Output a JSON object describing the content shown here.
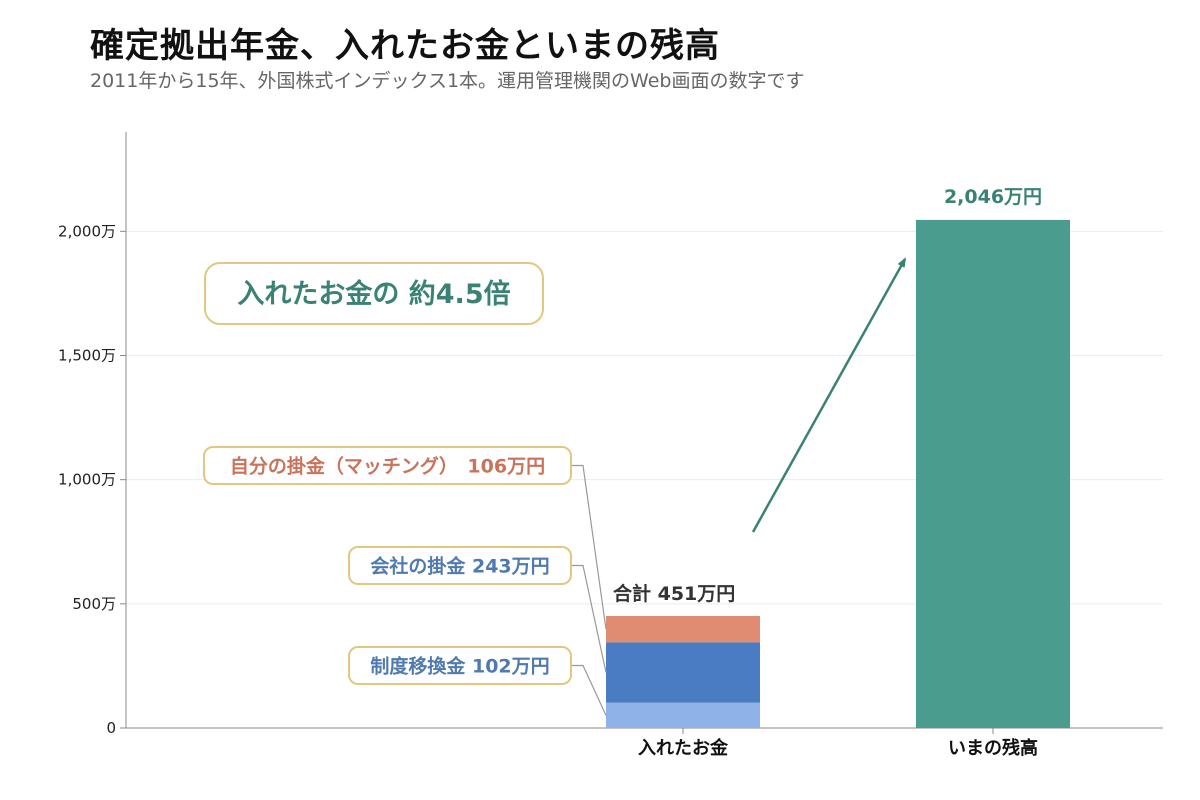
{
  "title": "確定拠出年金、入れたお金といまの残高",
  "subtitle": "2011年から15年、外国株式インデックス1本。運用管理機関のWeb画面の数字です",
  "chart_data": {
    "type": "bar",
    "categories": [
      "入れたお金",
      "いまの残高"
    ],
    "ylim": [
      0,
      2400
    ],
    "yticks": [
      0,
      500,
      1000,
      1500,
      2000
    ],
    "ytick_labels": [
      "0",
      "500万",
      "1,000万",
      "1,500万",
      "2,000万"
    ],
    "grid": true,
    "series": [
      {
        "name": "制度移換金",
        "category": "入れたお金",
        "value": 102,
        "color": "#8db3e8",
        "label": "制度移換金  102万円",
        "label_color": "#4f7ab0"
      },
      {
        "name": "会社の掛金",
        "category": "入れたお金",
        "value": 243,
        "color": "#4a7cc4",
        "label": "会社の掛金  243万円",
        "label_color": "#4f7ab0"
      },
      {
        "name": "自分の掛金（マッチング）",
        "category": "入れたお金",
        "value": 106,
        "color": "#df8c72",
        "label": "自分の掛金（マッチング）　106万円",
        "label_color": "#c8735a"
      },
      {
        "name": "いまの残高",
        "category": "いまの残高",
        "value": 2046,
        "color": "#4a9c8f"
      }
    ],
    "total_label": "合計 451万円",
    "balance_label": "2,046万円",
    "ratio_label": "入れたお金の 約4.5倍",
    "colors": {
      "ratio": "#3a8275",
      "callout_border": "#e3c780",
      "leader": "#999999"
    }
  }
}
